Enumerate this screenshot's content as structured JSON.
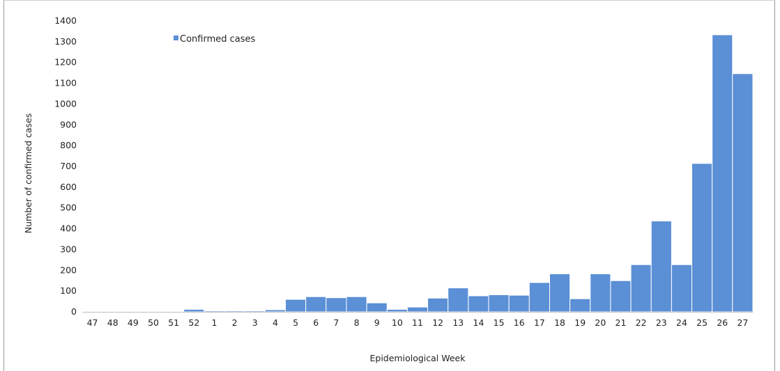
{
  "chart_data": {
    "type": "bar",
    "categories": [
      "47",
      "48",
      "49",
      "50",
      "51",
      "52",
      "1",
      "2",
      "3",
      "4",
      "5",
      "6",
      "7",
      "8",
      "9",
      "10",
      "11",
      "12",
      "13",
      "14",
      "15",
      "16",
      "17",
      "18",
      "19",
      "20",
      "21",
      "22",
      "23",
      "24",
      "25",
      "26",
      "27"
    ],
    "series": [
      {
        "name": "Confirmed cases",
        "color": "#5B8FD6",
        "values": [
          0,
          0,
          0,
          0,
          0,
          12,
          5,
          5,
          5,
          10,
          60,
          73,
          68,
          73,
          43,
          12,
          23,
          66,
          115,
          77,
          82,
          80,
          141,
          183,
          63,
          183,
          150,
          227,
          437,
          227,
          714,
          1333,
          1146
        ]
      }
    ],
    "xlabel": "Epidemiological Week",
    "ylabel": "Number of confirmed cases",
    "ylim": [
      0,
      1400
    ],
    "yticks": [
      0,
      100,
      200,
      300,
      400,
      500,
      600,
      700,
      800,
      900,
      1000,
      1100,
      1200,
      1300,
      1400
    ],
    "grid": false,
    "legend_position": "top-left"
  }
}
